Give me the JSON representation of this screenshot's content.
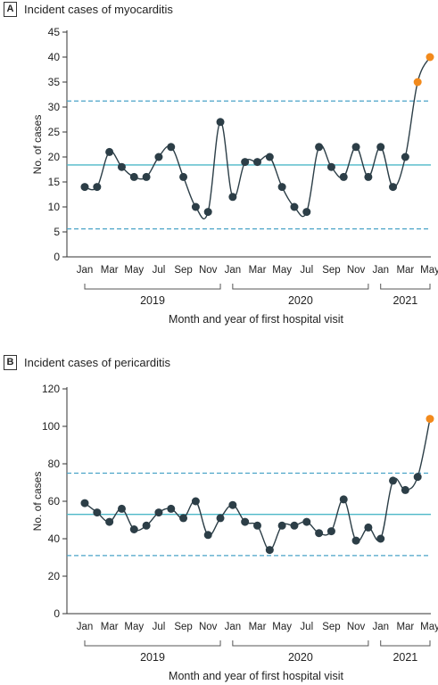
{
  "chart_data": [
    {
      "type": "line",
      "panel": "A",
      "title": "Incident cases of myocarditis",
      "xlabel": "Month and year of first hospital visit",
      "ylabel": "No. of cases",
      "ylim": [
        0,
        45
      ],
      "yticks": [
        0,
        5,
        10,
        15,
        20,
        25,
        30,
        35,
        40,
        45
      ],
      "x_tick_labels": [
        "Jan",
        "Mar",
        "May",
        "Jul",
        "Sep",
        "Nov",
        "Jan",
        "Mar",
        "May",
        "Jul",
        "Sep",
        "Nov",
        "Jan",
        "Mar",
        "May"
      ],
      "year_groups": [
        {
          "label": "2019",
          "start": 0,
          "end": 11
        },
        {
          "label": "2020",
          "start": 12,
          "end": 23
        },
        {
          "label": "2021",
          "start": 24,
          "end": 28
        }
      ],
      "x": [
        "2019-01",
        "2019-02",
        "2019-03",
        "2019-04",
        "2019-05",
        "2019-06",
        "2019-07",
        "2019-08",
        "2019-09",
        "2019-10",
        "2019-11",
        "2019-12",
        "2020-01",
        "2020-02",
        "2020-03",
        "2020-04",
        "2020-05",
        "2020-06",
        "2020-07",
        "2020-08",
        "2020-09",
        "2020-10",
        "2020-11",
        "2020-12",
        "2021-01",
        "2021-02",
        "2021-03",
        "2021-04",
        "2021-05"
      ],
      "values": [
        14,
        14,
        21,
        18,
        16,
        16,
        20,
        22,
        16,
        10,
        9,
        27,
        12,
        19,
        19,
        20,
        14,
        10,
        9,
        22,
        18,
        16,
        22,
        16,
        22,
        14,
        20,
        35,
        40
      ],
      "highlighted_indices": [
        27,
        28
      ],
      "center_line": 18.4,
      "control_limits": [
        5.6,
        31.2
      ],
      "colors": {
        "point": "#2c3e47",
        "highlight": "#f28a1c",
        "center": "#4db8c8",
        "limit": "#4aa3c7",
        "line": "#2c3e47"
      }
    },
    {
      "type": "line",
      "panel": "B",
      "title": "Incident cases of pericarditis",
      "xlabel": "Month and year of first hospital visit",
      "ylabel": "No. of cases",
      "ylim": [
        0,
        120
      ],
      "yticks": [
        0,
        20,
        40,
        60,
        80,
        100,
        120
      ],
      "x_tick_labels": [
        "Jan",
        "Mar",
        "May",
        "Jul",
        "Sep",
        "Nov",
        "Jan",
        "Mar",
        "May",
        "Jul",
        "Sep",
        "Nov",
        "Jan",
        "Mar",
        "May"
      ],
      "year_groups": [
        {
          "label": "2019",
          "start": 0,
          "end": 11
        },
        {
          "label": "2020",
          "start": 12,
          "end": 23
        },
        {
          "label": "2021",
          "start": 24,
          "end": 28
        }
      ],
      "x": [
        "2019-01",
        "2019-02",
        "2019-03",
        "2019-04",
        "2019-05",
        "2019-06",
        "2019-07",
        "2019-08",
        "2019-09",
        "2019-10",
        "2019-11",
        "2019-12",
        "2020-01",
        "2020-02",
        "2020-03",
        "2020-04",
        "2020-05",
        "2020-06",
        "2020-07",
        "2020-08",
        "2020-09",
        "2020-10",
        "2020-11",
        "2020-12",
        "2021-01",
        "2021-02",
        "2021-03",
        "2021-04",
        "2021-05"
      ],
      "values": [
        59,
        54,
        49,
        56,
        45,
        47,
        54,
        56,
        51,
        60,
        42,
        51,
        58,
        49,
        47,
        34,
        47,
        47,
        49,
        43,
        44,
        61,
        39,
        46,
        40,
        71,
        66,
        73,
        104
      ],
      "highlighted_indices": [
        28
      ],
      "center_line": 53,
      "control_limits": [
        31,
        75
      ],
      "colors": {
        "point": "#2c3e47",
        "highlight": "#f28a1c",
        "center": "#4db8c8",
        "limit": "#4aa3c7",
        "line": "#2c3e47"
      }
    }
  ]
}
